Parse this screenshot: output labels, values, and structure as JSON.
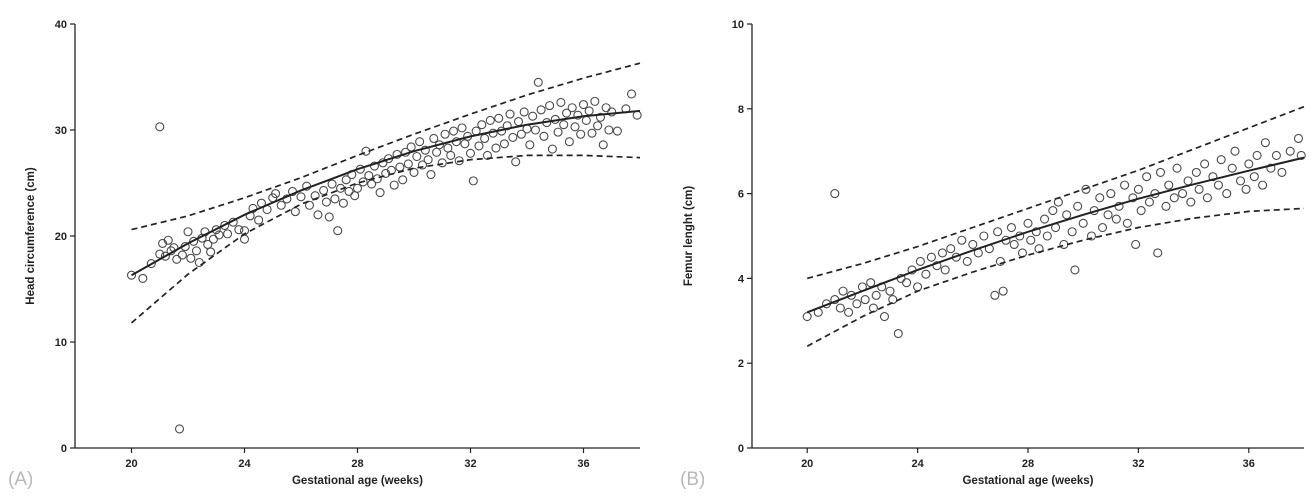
{
  "chart_data": [
    {
      "type": "scatter",
      "panel_label": "(A)",
      "xlabel": "Gestational age (weeks)",
      "ylabel": "Head circumference (cm)",
      "xlim": [
        18,
        38
      ],
      "ylim": [
        0,
        40
      ],
      "x_ticks": [
        20,
        24,
        28,
        32,
        36
      ],
      "y_ticks": [
        0,
        10,
        20,
        30,
        40
      ],
      "fit_line": {
        "x": [
          20,
          22,
          24,
          26,
          28,
          30,
          32,
          34,
          36,
          38
        ],
        "y": [
          16.3,
          19.3,
          22.0,
          24.3,
          26.3,
          28.0,
          29.4,
          30.5,
          31.3,
          31.8
        ]
      },
      "upper_band": {
        "x": [
          20,
          22,
          24,
          26,
          28,
          30,
          32,
          34,
          36,
          38
        ],
        "y": [
          20.6,
          21.9,
          23.6,
          25.5,
          27.6,
          29.6,
          31.5,
          33.3,
          34.9,
          36.3
        ]
      },
      "lower_band": {
        "x": [
          20,
          22,
          24,
          26,
          28,
          30,
          32,
          34,
          36,
          38
        ],
        "y": [
          11.8,
          16.4,
          20.2,
          23.0,
          25.0,
          26.4,
          27.2,
          27.6,
          27.6,
          27.4
        ]
      },
      "points": [
        [
          20.0,
          16.3
        ],
        [
          20.4,
          16.0
        ],
        [
          20.7,
          17.4
        ],
        [
          21.0,
          30.3
        ],
        [
          21.0,
          18.3
        ],
        [
          21.1,
          19.3
        ],
        [
          21.2,
          18.1
        ],
        [
          21.3,
          19.6
        ],
        [
          21.4,
          18.6
        ],
        [
          21.5,
          18.9
        ],
        [
          21.6,
          17.8
        ],
        [
          21.7,
          1.8
        ],
        [
          21.8,
          18.2
        ],
        [
          21.9,
          19.0
        ],
        [
          22.0,
          20.4
        ],
        [
          22.1,
          17.9
        ],
        [
          22.2,
          19.5
        ],
        [
          22.3,
          18.6
        ],
        [
          22.4,
          17.5
        ],
        [
          22.5,
          19.8
        ],
        [
          22.6,
          20.4
        ],
        [
          22.7,
          19.2
        ],
        [
          22.8,
          18.5
        ],
        [
          22.9,
          19.7
        ],
        [
          23.0,
          20.6
        ],
        [
          23.1,
          20.1
        ],
        [
          23.3,
          21.0
        ],
        [
          23.4,
          20.2
        ],
        [
          23.6,
          21.3
        ],
        [
          23.8,
          20.6
        ],
        [
          24.0,
          19.7
        ],
        [
          24.0,
          20.5
        ],
        [
          24.2,
          21.9
        ],
        [
          24.3,
          22.6
        ],
        [
          24.5,
          21.5
        ],
        [
          24.6,
          23.1
        ],
        [
          24.8,
          22.5
        ],
        [
          25.0,
          23.6
        ],
        [
          25.1,
          24.0
        ],
        [
          25.3,
          22.9
        ],
        [
          25.5,
          23.5
        ],
        [
          25.7,
          24.2
        ],
        [
          25.8,
          22.3
        ],
        [
          26.0,
          23.7
        ],
        [
          26.2,
          24.7
        ],
        [
          26.3,
          22.9
        ],
        [
          26.5,
          23.8
        ],
        [
          26.6,
          22.0
        ],
        [
          26.8,
          24.3
        ],
        [
          26.9,
          23.2
        ],
        [
          27.0,
          21.8
        ],
        [
          27.1,
          24.9
        ],
        [
          27.2,
          23.5
        ],
        [
          27.3,
          20.5
        ],
        [
          27.4,
          24.5
        ],
        [
          27.5,
          23.1
        ],
        [
          27.6,
          25.3
        ],
        [
          27.7,
          24.2
        ],
        [
          27.8,
          25.8
        ],
        [
          27.9,
          23.8
        ],
        [
          28.0,
          24.5
        ],
        [
          28.1,
          26.3
        ],
        [
          28.2,
          25.1
        ],
        [
          28.3,
          28.0
        ],
        [
          28.4,
          25.7
        ],
        [
          28.5,
          24.9
        ],
        [
          28.6,
          26.6
        ],
        [
          28.7,
          25.4
        ],
        [
          28.8,
          24.1
        ],
        [
          28.9,
          26.9
        ],
        [
          29.0,
          25.9
        ],
        [
          29.1,
          27.3
        ],
        [
          29.2,
          26.2
        ],
        [
          29.3,
          24.8
        ],
        [
          29.4,
          27.7
        ],
        [
          29.5,
          26.5
        ],
        [
          29.6,
          25.3
        ],
        [
          29.7,
          27.9
        ],
        [
          29.8,
          26.8
        ],
        [
          29.9,
          28.4
        ],
        [
          30.0,
          26.0
        ],
        [
          30.1,
          27.5
        ],
        [
          30.2,
          28.9
        ],
        [
          30.3,
          26.7
        ],
        [
          30.4,
          28.1
        ],
        [
          30.5,
          27.2
        ],
        [
          30.6,
          25.8
        ],
        [
          30.7,
          29.2
        ],
        [
          30.8,
          27.9
        ],
        [
          30.9,
          28.6
        ],
        [
          31.0,
          26.9
        ],
        [
          31.1,
          29.6
        ],
        [
          31.2,
          28.3
        ],
        [
          31.3,
          27.6
        ],
        [
          31.4,
          29.9
        ],
        [
          31.5,
          28.9
        ],
        [
          31.6,
          27.1
        ],
        [
          31.7,
          30.2
        ],
        [
          31.8,
          28.7
        ],
        [
          31.9,
          29.4
        ],
        [
          32.0,
          27.8
        ],
        [
          32.1,
          25.2
        ],
        [
          32.2,
          29.9
        ],
        [
          32.3,
          28.5
        ],
        [
          32.4,
          30.5
        ],
        [
          32.5,
          29.2
        ],
        [
          32.6,
          27.6
        ],
        [
          32.7,
          30.9
        ],
        [
          32.8,
          29.7
        ],
        [
          32.9,
          28.3
        ],
        [
          33.0,
          31.1
        ],
        [
          33.1,
          29.9
        ],
        [
          33.2,
          28.7
        ],
        [
          33.3,
          30.4
        ],
        [
          33.4,
          31.5
        ],
        [
          33.5,
          29.3
        ],
        [
          33.6,
          27.0
        ],
        [
          33.7,
          30.8
        ],
        [
          33.8,
          29.6
        ],
        [
          33.9,
          31.7
        ],
        [
          34.0,
          30.1
        ],
        [
          34.1,
          28.6
        ],
        [
          34.2,
          31.3
        ],
        [
          34.3,
          30.0
        ],
        [
          34.4,
          34.5
        ],
        [
          34.5,
          31.9
        ],
        [
          34.6,
          29.4
        ],
        [
          34.7,
          30.7
        ],
        [
          34.8,
          32.3
        ],
        [
          34.9,
          28.2
        ],
        [
          35.0,
          31.0
        ],
        [
          35.1,
          29.8
        ],
        [
          35.2,
          32.6
        ],
        [
          35.3,
          30.5
        ],
        [
          35.4,
          31.6
        ],
        [
          35.5,
          28.9
        ],
        [
          35.6,
          32.1
        ],
        [
          35.7,
          30.3
        ],
        [
          35.8,
          31.4
        ],
        [
          35.9,
          29.6
        ],
        [
          36.0,
          32.4
        ],
        [
          36.1,
          30.9
        ],
        [
          36.2,
          31.8
        ],
        [
          36.3,
          29.7
        ],
        [
          36.4,
          32.7
        ],
        [
          36.5,
          30.4
        ],
        [
          36.6,
          31.2
        ],
        [
          36.7,
          28.6
        ],
        [
          36.8,
          32.1
        ],
        [
          36.9,
          30.0
        ],
        [
          37.0,
          31.7
        ],
        [
          37.2,
          29.9
        ],
        [
          37.5,
          32.0
        ],
        [
          37.7,
          33.4
        ],
        [
          37.9,
          31.4
        ]
      ]
    },
    {
      "type": "scatter",
      "panel_label": "(B)",
      "xlabel": "Gestational age (weeks)",
      "ylabel": "Femur lenght (cm)",
      "xlim": [
        18,
        38
      ],
      "ylim": [
        0,
        10
      ],
      "x_ticks": [
        20,
        24,
        28,
        32,
        36
      ],
      "y_ticks": [
        0,
        2,
        4,
        6,
        8,
        10
      ],
      "fit_line": {
        "x": [
          20,
          22,
          24,
          26,
          28,
          30,
          32,
          34,
          36,
          38
        ],
        "y": [
          3.2,
          3.7,
          4.2,
          4.66,
          5.1,
          5.5,
          5.88,
          6.22,
          6.54,
          6.85
        ]
      },
      "upper_band": {
        "x": [
          20,
          22,
          24,
          26,
          28,
          30,
          32,
          34,
          36,
          38
        ],
        "y": [
          4.0,
          4.35,
          4.75,
          5.2,
          5.65,
          6.1,
          6.55,
          7.05,
          7.55,
          8.05
        ]
      },
      "lower_band": {
        "x": [
          20,
          22,
          24,
          26,
          28,
          30,
          32,
          34,
          36,
          38
        ],
        "y": [
          2.4,
          3.1,
          3.7,
          4.15,
          4.55,
          4.9,
          5.2,
          5.42,
          5.58,
          5.65
        ]
      },
      "points": [
        [
          20.0,
          3.1
        ],
        [
          20.4,
          3.2
        ],
        [
          20.7,
          3.4
        ],
        [
          21.0,
          6.0
        ],
        [
          21.0,
          3.5
        ],
        [
          21.2,
          3.3
        ],
        [
          21.3,
          3.7
        ],
        [
          21.5,
          3.2
        ],
        [
          21.6,
          3.6
        ],
        [
          21.8,
          3.4
        ],
        [
          22.0,
          3.8
        ],
        [
          22.1,
          3.5
        ],
        [
          22.3,
          3.9
        ],
        [
          22.4,
          3.3
        ],
        [
          22.5,
          3.6
        ],
        [
          22.7,
          3.8
        ],
        [
          22.8,
          3.1
        ],
        [
          23.0,
          3.7
        ],
        [
          23.1,
          3.5
        ],
        [
          23.3,
          2.7
        ],
        [
          23.4,
          4.0
        ],
        [
          23.6,
          3.9
        ],
        [
          23.8,
          4.2
        ],
        [
          24.0,
          3.8
        ],
        [
          24.1,
          4.4
        ],
        [
          24.3,
          4.1
        ],
        [
          24.5,
          4.5
        ],
        [
          24.7,
          4.3
        ],
        [
          24.9,
          4.6
        ],
        [
          25.0,
          4.2
        ],
        [
          25.2,
          4.7
        ],
        [
          25.4,
          4.5
        ],
        [
          25.6,
          4.9
        ],
        [
          25.8,
          4.4
        ],
        [
          26.0,
          4.8
        ],
        [
          26.2,
          4.6
        ],
        [
          26.4,
          5.0
        ],
        [
          26.6,
          4.7
        ],
        [
          26.8,
          3.6
        ],
        [
          26.9,
          5.1
        ],
        [
          27.0,
          4.4
        ],
        [
          27.1,
          3.7
        ],
        [
          27.2,
          4.9
        ],
        [
          27.4,
          5.2
        ],
        [
          27.5,
          4.8
        ],
        [
          27.7,
          5.0
        ],
        [
          27.8,
          4.6
        ],
        [
          28.0,
          5.3
        ],
        [
          28.1,
          4.9
        ],
        [
          28.3,
          5.1
        ],
        [
          28.4,
          4.7
        ],
        [
          28.6,
          5.4
        ],
        [
          28.7,
          5.0
        ],
        [
          28.9,
          5.6
        ],
        [
          29.0,
          5.2
        ],
        [
          29.1,
          5.8
        ],
        [
          29.3,
          4.8
        ],
        [
          29.4,
          5.5
        ],
        [
          29.6,
          5.1
        ],
        [
          29.7,
          4.2
        ],
        [
          29.8,
          5.7
        ],
        [
          30.0,
          5.3
        ],
        [
          30.1,
          6.1
        ],
        [
          30.3,
          5.0
        ],
        [
          30.4,
          5.6
        ],
        [
          30.6,
          5.9
        ],
        [
          30.7,
          5.2
        ],
        [
          30.9,
          5.5
        ],
        [
          31.0,
          6.0
        ],
        [
          31.2,
          5.4
        ],
        [
          31.3,
          5.7
        ],
        [
          31.5,
          6.2
        ],
        [
          31.6,
          5.3
        ],
        [
          31.8,
          5.9
        ],
        [
          31.9,
          4.8
        ],
        [
          32.0,
          6.1
        ],
        [
          32.1,
          5.6
        ],
        [
          32.3,
          6.4
        ],
        [
          32.4,
          5.8
        ],
        [
          32.6,
          6.0
        ],
        [
          32.7,
          4.6
        ],
        [
          32.8,
          6.5
        ],
        [
          33.0,
          5.7
        ],
        [
          33.1,
          6.2
        ],
        [
          33.3,
          5.9
        ],
        [
          33.4,
          6.6
        ],
        [
          33.6,
          6.0
        ],
        [
          33.8,
          6.3
        ],
        [
          33.9,
          5.8
        ],
        [
          34.1,
          6.5
        ],
        [
          34.2,
          6.1
        ],
        [
          34.4,
          6.7
        ],
        [
          34.5,
          5.9
        ],
        [
          34.7,
          6.4
        ],
        [
          34.9,
          6.2
        ],
        [
          35.0,
          6.8
        ],
        [
          35.2,
          6.0
        ],
        [
          35.4,
          6.6
        ],
        [
          35.5,
          7.0
        ],
        [
          35.7,
          6.3
        ],
        [
          35.9,
          6.1
        ],
        [
          36.0,
          6.7
        ],
        [
          36.2,
          6.4
        ],
        [
          36.3,
          6.9
        ],
        [
          36.5,
          6.2
        ],
        [
          36.6,
          7.2
        ],
        [
          36.8,
          6.6
        ],
        [
          37.0,
          6.9
        ],
        [
          37.2,
          6.5
        ],
        [
          37.5,
          7.0
        ],
        [
          37.8,
          7.3
        ],
        [
          37.9,
          6.9
        ]
      ]
    }
  ]
}
